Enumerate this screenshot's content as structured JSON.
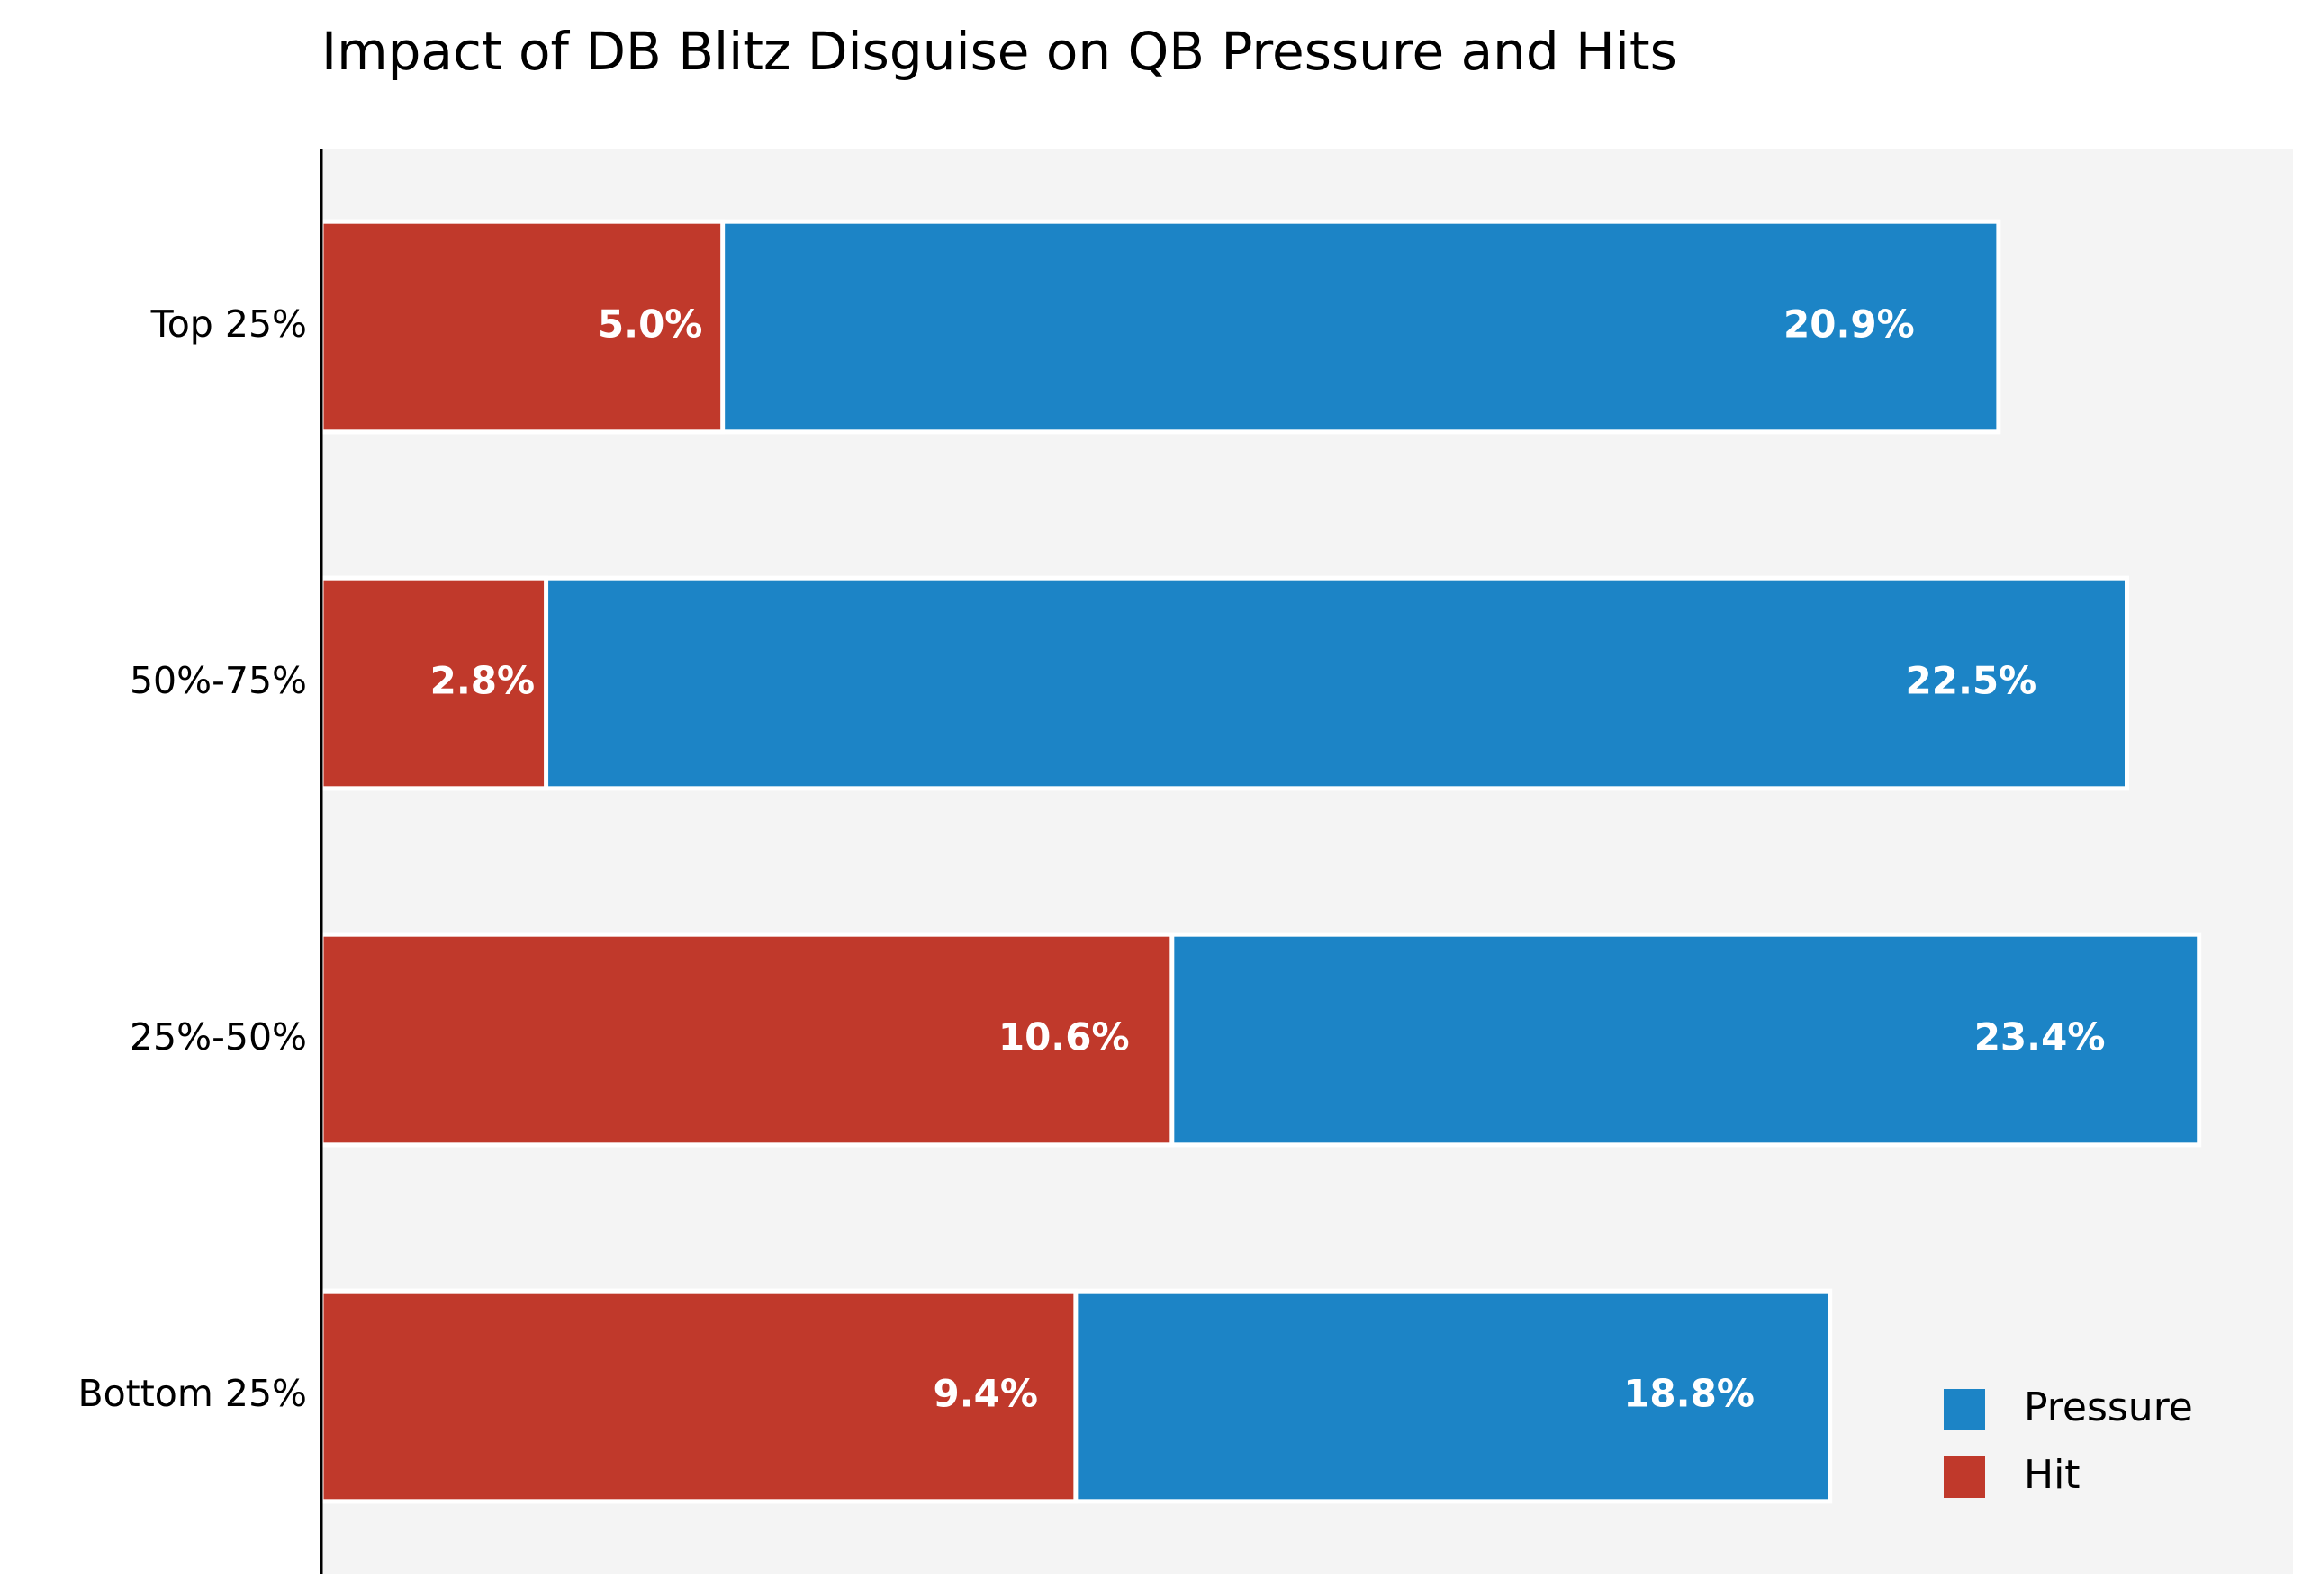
{
  "chart_data": {
    "type": "bar",
    "orientation": "horizontal",
    "title": "Impact of DB Blitz Disguise on QB Pressure and Hits",
    "categories": [
      "Top 25%",
      "50%-75%",
      "25%-50%",
      "Bottom 25%"
    ],
    "series": [
      {
        "name": "Pressure",
        "color": "#1c84c6",
        "values": [
          20.9,
          22.5,
          23.4,
          18.8
        ],
        "value_labels": [
          "20.9%",
          "22.5%",
          "23.4%",
          "18.8%"
        ]
      },
      {
        "name": "Hit",
        "color": "#c0392b",
        "values": [
          5.0,
          2.8,
          10.6,
          9.4
        ],
        "value_labels": [
          "5.0%",
          "2.8%",
          "10.6%",
          "9.4%"
        ]
      }
    ],
    "xlim": [
      0,
      24.57
    ],
    "legend": "lower right",
    "background": "#f4f4f4"
  }
}
